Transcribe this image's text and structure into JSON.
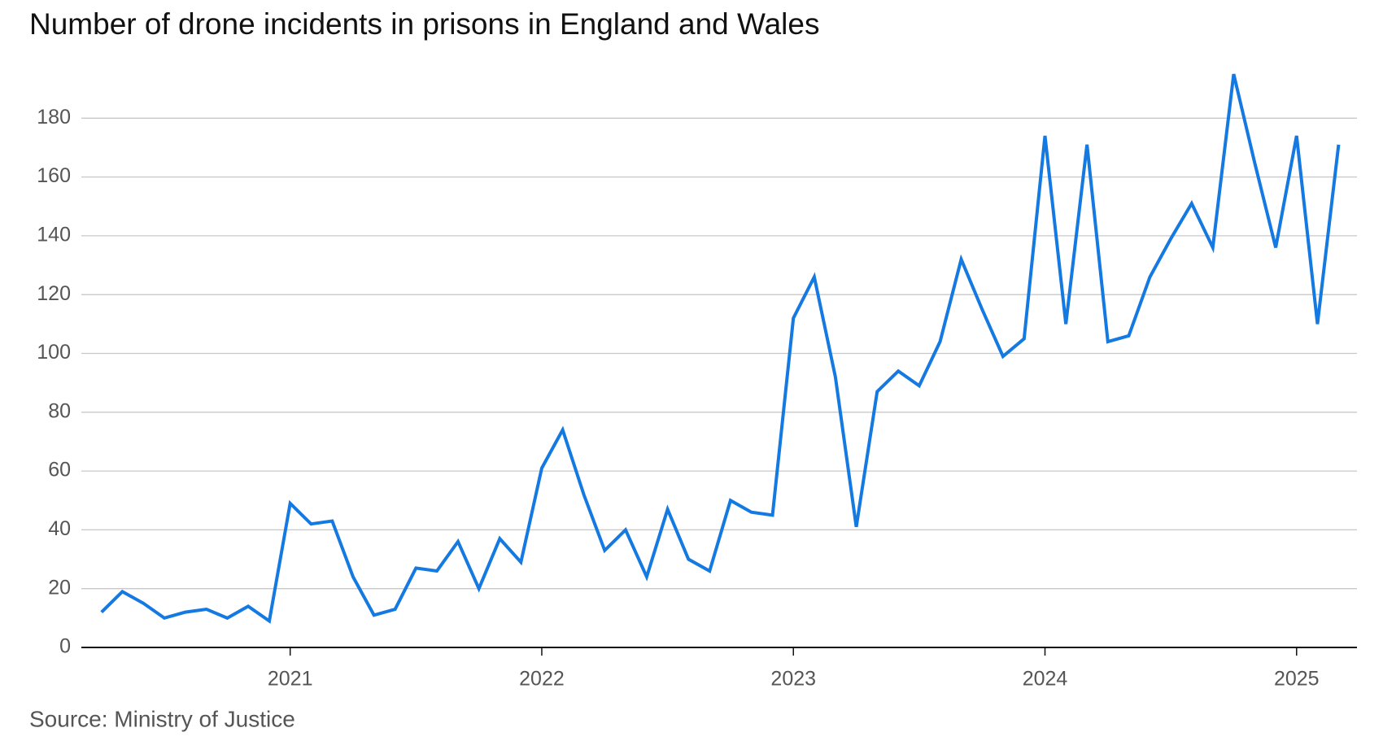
{
  "chart_data": {
    "type": "line",
    "title": "Number of drone incidents in prisons in England and Wales",
    "source": "Source: Ministry of Justice",
    "x": [
      2020.25,
      2020.333,
      2020.417,
      2020.5,
      2020.583,
      2020.667,
      2020.75,
      2020.833,
      2020.917,
      2021,
      2021.083,
      2021.167,
      2021.25,
      2021.333,
      2021.417,
      2021.5,
      2021.583,
      2021.667,
      2021.75,
      2021.833,
      2021.917,
      2022,
      2022.083,
      2022.167,
      2022.25,
      2022.333,
      2022.417,
      2022.5,
      2022.583,
      2022.667,
      2022.75,
      2022.833,
      2022.917,
      2023,
      2023.083,
      2023.167,
      2023.25,
      2023.333,
      2023.417,
      2023.5,
      2023.583,
      2023.667,
      2023.75,
      2023.833,
      2023.917,
      2024,
      2024.083,
      2024.167,
      2024.25,
      2024.333,
      2024.417,
      2024.5,
      2024.583,
      2024.667,
      2024.75,
      2024.833,
      2024.917,
      2025,
      2025.083,
      2025.167
    ],
    "values": [
      12,
      19,
      15,
      10,
      12,
      13,
      10,
      14,
      9,
      49,
      42,
      43,
      24,
      11,
      13,
      27,
      26,
      36,
      20,
      37,
      29,
      61,
      74,
      52,
      33,
      40,
      24,
      47,
      30,
      26,
      50,
      46,
      45,
      112,
      126,
      92,
      41,
      87,
      94,
      89,
      104,
      132,
      115,
      99,
      105,
      174,
      110,
      171,
      104,
      106,
      126,
      139,
      151,
      136,
      195,
      165,
      136,
      174,
      110,
      171
    ],
    "color": "#1479e0",
    "xlim": [
      2020.17,
      2025.24
    ],
    "xticks": [
      2021,
      2022,
      2023,
      2024,
      2025
    ],
    "ylim": [
      0,
      200
    ],
    "yticks": [
      0,
      20,
      40,
      60,
      80,
      100,
      120,
      140,
      160,
      180
    ],
    "grid": true
  }
}
